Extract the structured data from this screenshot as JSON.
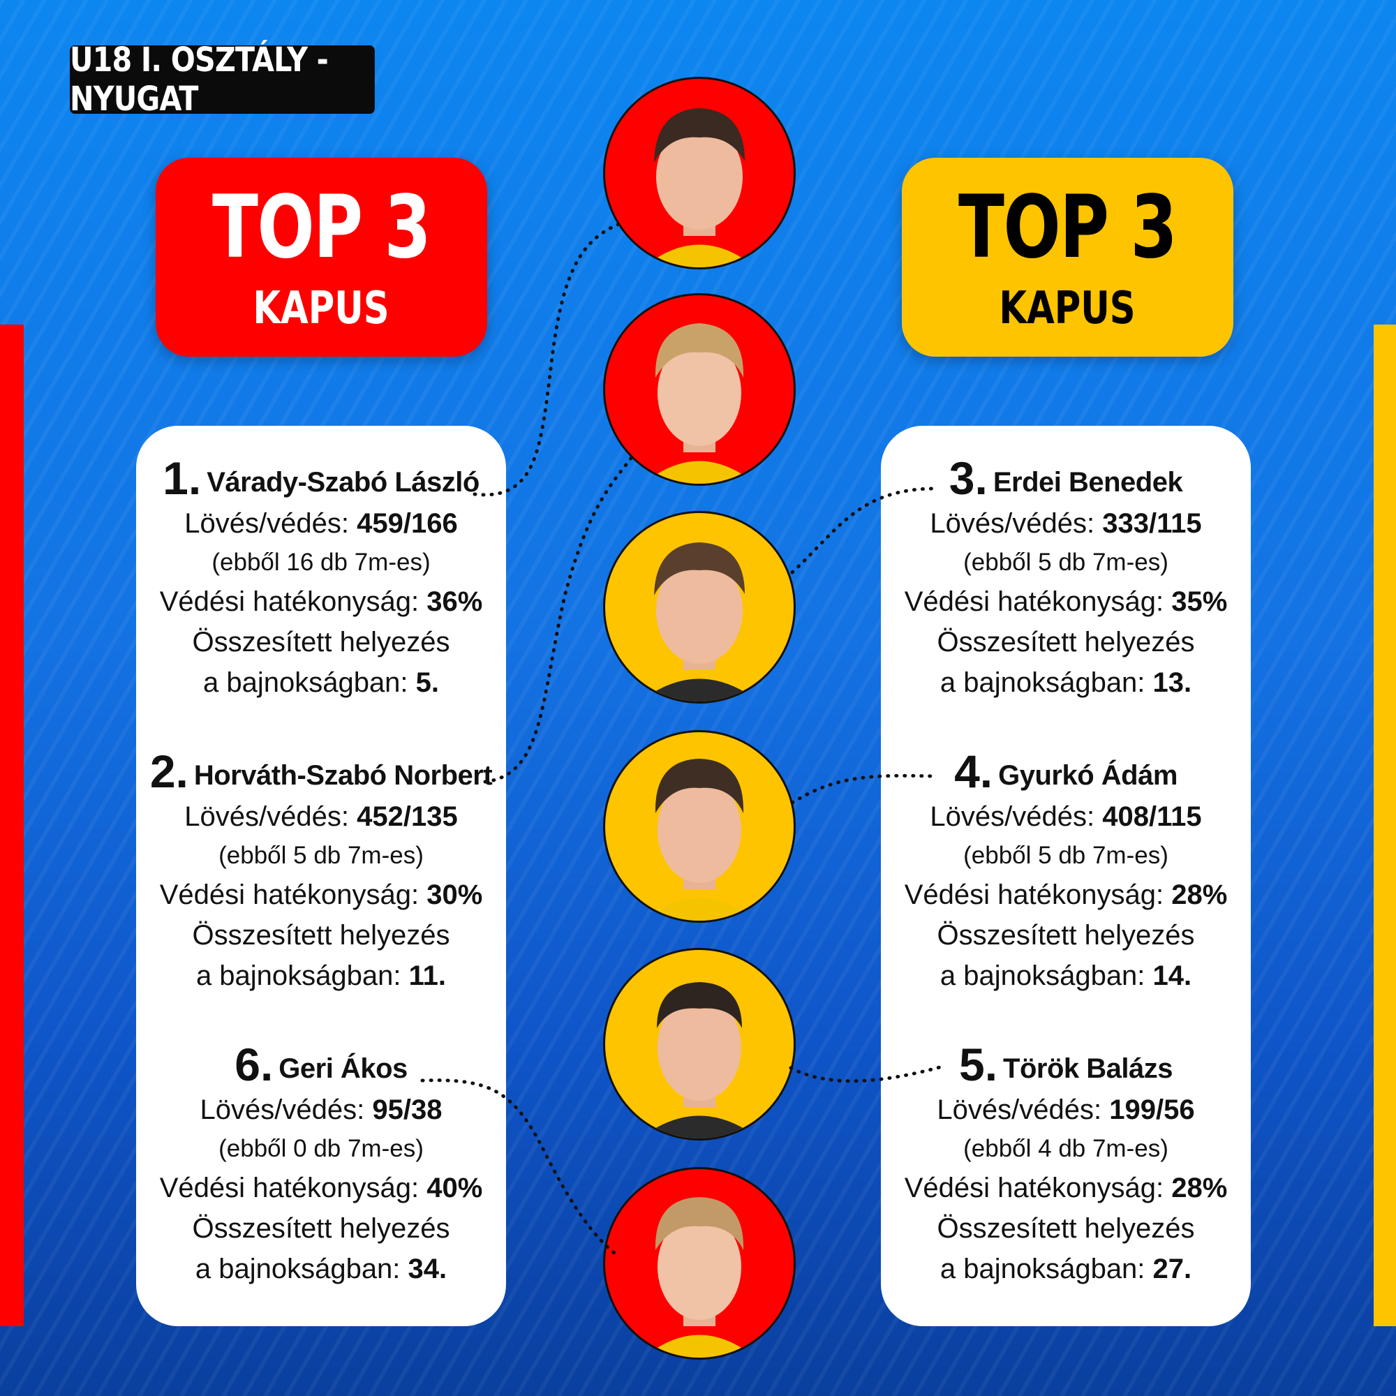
{
  "header": {
    "title": "U18 I. OSZTÁLY - NYUGAT"
  },
  "boxes": {
    "left": {
      "title": "TOP 3",
      "subtitle": "KAPUS"
    },
    "right": {
      "title": "TOP 3",
      "subtitle": "KAPUS"
    }
  },
  "labels": {
    "shots": "Lövés/védés:",
    "efficiency": "Védési hatékonyság:",
    "overall_1": "Összesített helyezés",
    "overall_2": "a bajnokságban:"
  },
  "left_players": [
    {
      "rank": "1.",
      "name": "Várady-Szabó László",
      "shots_saves": "459/166",
      "penalties": "(ebből 16 db 7m-es)",
      "efficiency": "36%",
      "placement": "5."
    },
    {
      "rank": "2.",
      "name": "Horváth-Szabó Norbert",
      "shots_saves": "452/135",
      "penalties": "(ebből 5 db 7m-es)",
      "efficiency": "30%",
      "placement": "11."
    },
    {
      "rank": "6.",
      "name": "Geri Ákos",
      "shots_saves": "95/38",
      "penalties": "(ebből 0 db 7m-es)",
      "efficiency": "40%",
      "placement": "34."
    }
  ],
  "right_players": [
    {
      "rank": "3.",
      "name": "Erdei Benedek",
      "shots_saves": "333/115",
      "penalties": "(ebből 5 db 7m-es)",
      "efficiency": "35%",
      "placement": "13."
    },
    {
      "rank": "4.",
      "name": "Gyurkó Ádám",
      "shots_saves": "408/115",
      "penalties": "(ebből 5 db 7m-es)",
      "efficiency": "28%",
      "placement": "14."
    },
    {
      "rank": "5.",
      "name": "Török Balázs",
      "shots_saves": "199/56",
      "penalties": "(ebből 4 db 7m-es)",
      "efficiency": "28%",
      "placement": "27."
    }
  ],
  "colors": {
    "red": "#ff0000",
    "yellow": "#ffc400",
    "blue": "#1473e3",
    "dark": "#0b0b0b"
  }
}
